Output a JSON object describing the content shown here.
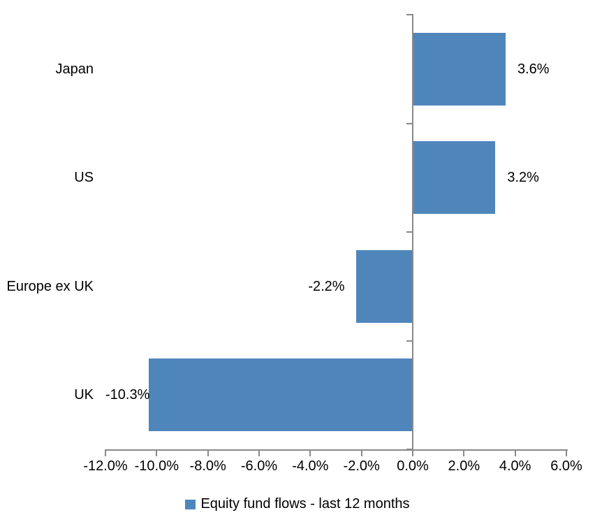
{
  "chart_data": {
    "type": "bar",
    "orientation": "horizontal",
    "title": "",
    "categories": [
      "Japan",
      "US",
      "Europe ex UK",
      "UK"
    ],
    "values": [
      3.6,
      3.2,
      -2.2,
      -10.3
    ],
    "value_labels": [
      "3.6%",
      "3.2%",
      "-2.2%",
      "-10.3%"
    ],
    "series_name": "Equity fund flows - last 12 months",
    "xlim": [
      -12,
      6
    ],
    "x_tick_step": 2,
    "x_tick_labels": [
      "-12.0%",
      "-10.0%",
      "-8.0%",
      "-6.0%",
      "-4.0%",
      "-2.0%",
      "0.0%",
      "2.0%",
      "4.0%",
      "6.0%"
    ],
    "grid": false,
    "legend_position": "bottom",
    "bar_color": "#4E86BC",
    "axis_color": "#898989",
    "text_color": "#000000"
  },
  "legend": {
    "label": "Equity fund flows - last 12 months"
  }
}
